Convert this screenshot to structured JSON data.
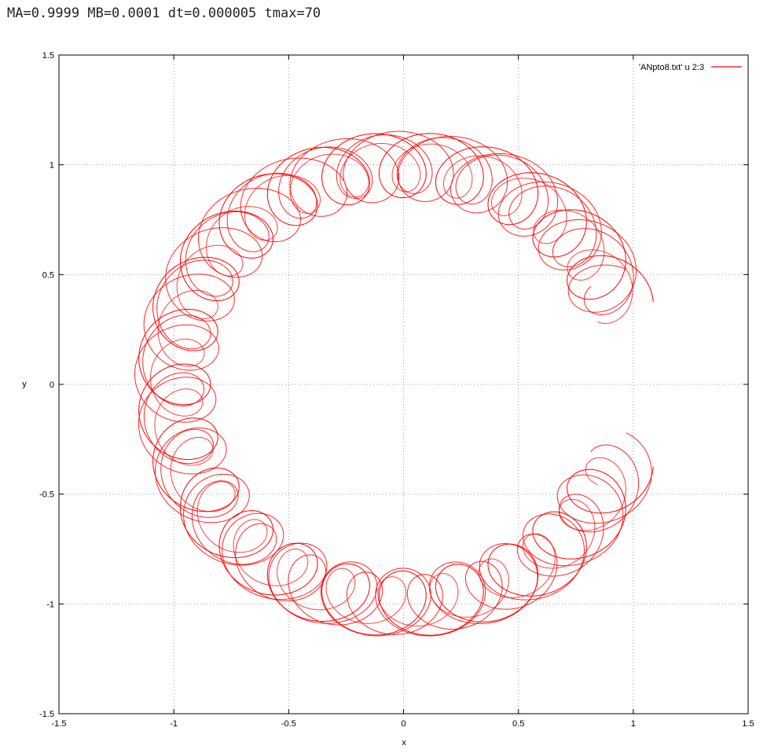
{
  "header": {
    "caption": "MA=0.9999 MB=0.0001 dt=0.000005 tmax=70"
  },
  "chart_data": {
    "type": "line",
    "title": "",
    "xlabel": "x",
    "ylabel": "y",
    "xlim": [
      -1.5,
      1.5
    ],
    "ylim": [
      -1.5,
      1.5
    ],
    "grid": true,
    "legend_position": "top-right",
    "xticks": [
      "-1.5",
      "-1",
      "-0.5",
      "0",
      "0.5",
      "1",
      "1.5"
    ],
    "yticks": [
      "-1.5",
      "-1",
      "-0.5",
      "0",
      "0.5",
      "1",
      "1.5"
    ],
    "series": [
      {
        "name": "'ANpto8.txt' u 2:3",
        "color": "#ff0000",
        "description_params": {
          "guiding_center_radius": 1.0,
          "loop_radius_x": 0.16,
          "loop_radius_y": 0.15,
          "start_angle_deg": 22,
          "end_angle_deg": 338
        }
      }
    ]
  }
}
